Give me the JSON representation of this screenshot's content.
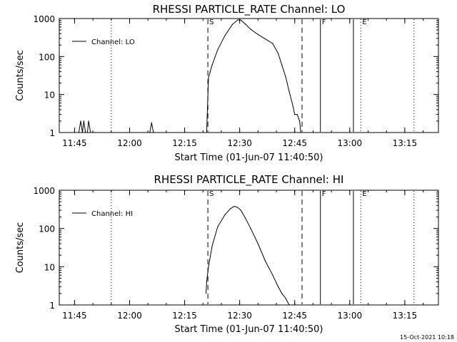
{
  "footer_timestamp": "15-Oct-2021 10:18",
  "chart_data": [
    {
      "type": "line",
      "title": "RHESSI PARTICLE_RATE Channel: LO",
      "xlabel": "Start Time (01-Jun-07 11:40:50)",
      "ylabel": "Counts/sec",
      "y_scale": "log",
      "ylim": [
        1,
        1000
      ],
      "xlim": [
        "11:40:50",
        "13:24:10"
      ],
      "x_ticks": [
        "11:45",
        "12:00",
        "12:15",
        "12:30",
        "12:45",
        "13:00",
        "13:15"
      ],
      "y_ticks": [
        "1",
        "10",
        "100",
        "1000"
      ],
      "legend": {
        "position": "top-left",
        "entries": [
          "Channel: LO"
        ]
      },
      "vertical_markers": [
        {
          "time": "11:55:00",
          "style": "dotted",
          "label": ""
        },
        {
          "time": "12:21:20",
          "style": "dashed",
          "label": "S"
        },
        {
          "time": "12:47:00",
          "style": "dashed",
          "label": ""
        },
        {
          "time": "12:52:00",
          "style": "solid",
          "label": "F"
        },
        {
          "time": "13:01:00",
          "style": "solid",
          "label": ""
        },
        {
          "time": "13:03:00",
          "style": "dotted",
          "label": "E"
        },
        {
          "time": "13:17:30",
          "style": "dotted",
          "label": ""
        }
      ],
      "series": [
        {
          "name": "Channel: LO",
          "x": [
            "11:46:10",
            "11:46:40",
            "11:47:10",
            "11:47:30",
            "11:48:00",
            "11:48:30",
            "11:48:50",
            "11:49:20",
            "11:49:50",
            "12:05:30",
            "12:06:00",
            "12:06:30",
            "12:21:00",
            "12:21:30",
            "12:22:30",
            "12:24:00",
            "12:26:00",
            "12:28:00",
            "12:29:30",
            "12:30:20",
            "12:31:30",
            "12:33:00",
            "12:35:00",
            "12:37:00",
            "12:39:00",
            "12:40:30",
            "12:41:30",
            "12:42:30",
            "12:43:30",
            "12:44:30",
            "12:45:00",
            "12:45:40",
            "12:46:20",
            "12:46:40"
          ],
          "y": [
            1,
            2,
            1,
            2,
            1,
            1,
            2,
            1,
            1,
            1,
            1.8,
            1,
            1,
            28,
            60,
            150,
            360,
            700,
            920,
            900,
            720,
            520,
            380,
            290,
            220,
            120,
            60,
            30,
            12,
            5,
            3,
            3,
            2,
            1
          ]
        }
      ]
    },
    {
      "type": "line",
      "title": "RHESSI PARTICLE_RATE Channel: HI",
      "xlabel": "Start Time (01-Jun-07 11:40:50)",
      "ylabel": "Counts/sec",
      "y_scale": "log",
      "ylim": [
        1,
        1000
      ],
      "xlim": [
        "11:40:50",
        "13:24:10"
      ],
      "x_ticks": [
        "11:45",
        "12:00",
        "12:15",
        "12:30",
        "12:45",
        "13:00",
        "13:15"
      ],
      "y_ticks": [
        "1",
        "10",
        "100",
        "1000"
      ],
      "legend": {
        "position": "top-left",
        "entries": [
          "Channel: HI"
        ]
      },
      "vertical_markers": [
        {
          "time": "11:55:00",
          "style": "dotted",
          "label": ""
        },
        {
          "time": "12:21:20",
          "style": "dashed",
          "label": "S"
        },
        {
          "time": "12:47:00",
          "style": "dashed",
          "label": ""
        },
        {
          "time": "12:52:00",
          "style": "solid",
          "label": "F"
        },
        {
          "time": "13:01:00",
          "style": "solid",
          "label": ""
        },
        {
          "time": "13:03:00",
          "style": "dotted",
          "label": "E"
        },
        {
          "time": "13:17:30",
          "style": "dotted",
          "label": ""
        }
      ],
      "series": [
        {
          "name": "Channel: HI",
          "x": [
            "12:20:50",
            "12:21:00",
            "12:21:30",
            "12:22:30",
            "12:24:00",
            "12:26:00",
            "12:27:30",
            "12:28:30",
            "12:29:20",
            "12:30:20",
            "12:31:30",
            "12:33:00",
            "12:35:00",
            "12:37:00",
            "12:39:00",
            "12:40:30",
            "12:41:30",
            "12:42:30",
            "12:43:30"
          ],
          "y": [
            2,
            4,
            10,
            35,
            110,
            230,
            330,
            380,
            360,
            300,
            190,
            100,
            40,
            14,
            6,
            3,
            2,
            1.5,
            1
          ]
        }
      ]
    }
  ]
}
